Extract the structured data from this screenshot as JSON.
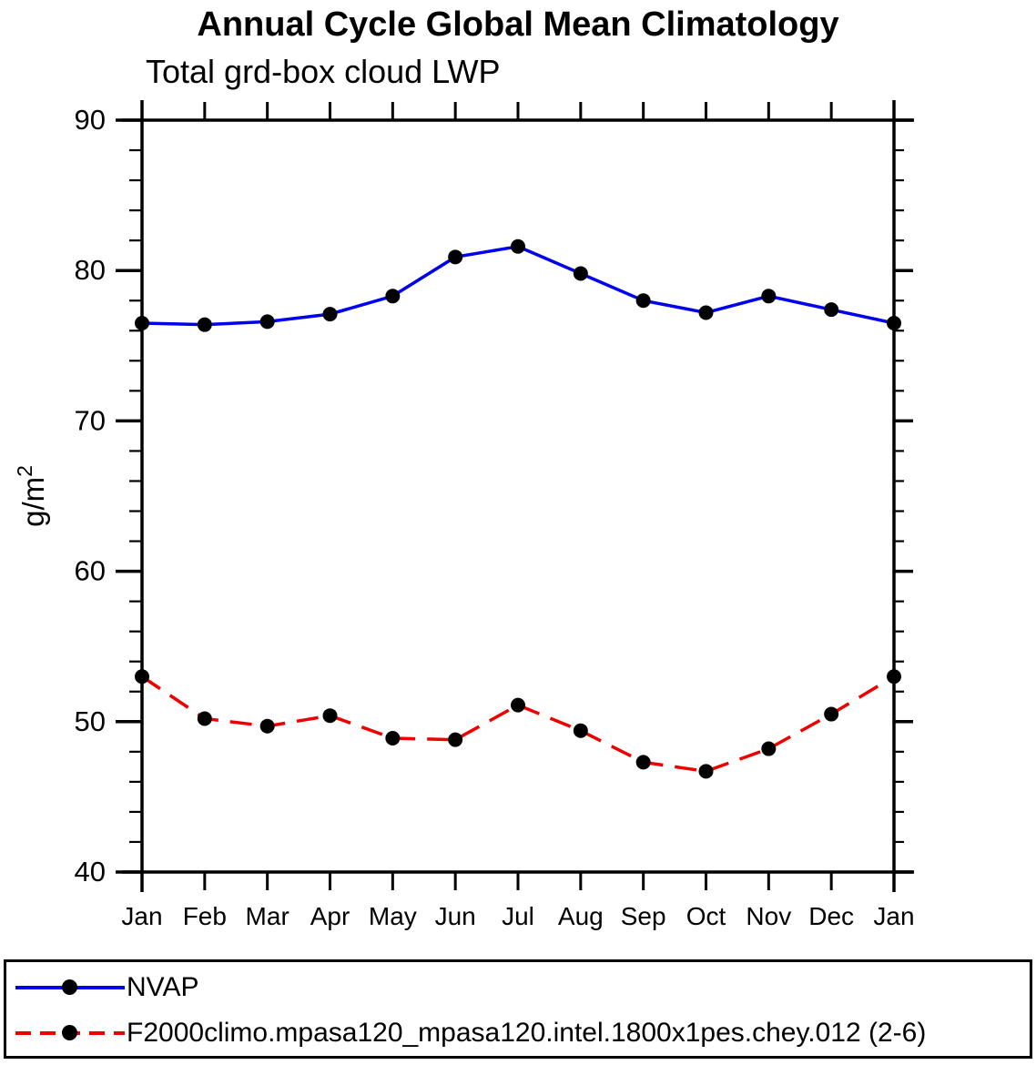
{
  "page": {
    "title": "Annual Cycle Global Mean Climatology",
    "subtitle": "Total grd-box cloud LWP"
  },
  "chart_data": {
    "type": "line",
    "title": "Annual Cycle Global Mean Climatology",
    "subtitle": "Total grd-box cloud LWP",
    "ylabel": "g/m",
    "ylabel_superscript": "2",
    "categories": [
      "Jan",
      "Feb",
      "Mar",
      "Apr",
      "May",
      "Jun",
      "Jul",
      "Aug",
      "Sep",
      "Oct",
      "Nov",
      "Dec",
      "Jan"
    ],
    "ylim": [
      40,
      90
    ],
    "yticks": [
      40,
      50,
      60,
      70,
      80,
      90
    ],
    "minor_tick_step": 2,
    "grid": false,
    "legend_position": "bottom",
    "marker": "filled-circle",
    "marker_color": "#000000",
    "series": [
      {
        "name": "NVAP",
        "color": "#0000EE",
        "style": "solid",
        "values": [
          76.5,
          76.4,
          76.6,
          77.1,
          78.3,
          80.9,
          81.6,
          79.8,
          78.0,
          77.2,
          78.3,
          77.4,
          76.5
        ]
      },
      {
        "name": "F2000climo.mpasa120_mpasa120.intel.1800x1pes.chey.012 (2-6)",
        "color": "#EE0000",
        "style": "dashed",
        "values": [
          53.0,
          50.2,
          49.7,
          50.4,
          48.9,
          48.8,
          51.1,
          49.4,
          47.3,
          46.7,
          48.2,
          50.5,
          53.0
        ]
      }
    ]
  }
}
